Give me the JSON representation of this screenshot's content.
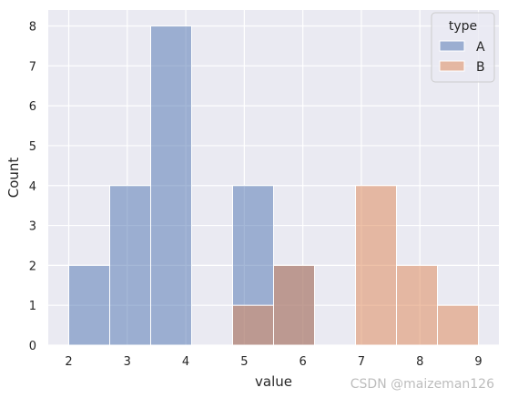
{
  "chart_data": {
    "type": "bar",
    "subtype": "histogram",
    "xlabel": "value",
    "ylabel": "Count",
    "xlim": [
      1.65,
      9.35
    ],
    "ylim": [
      0,
      8.4
    ],
    "xticks": [
      2,
      3,
      4,
      5,
      6,
      7,
      8,
      9
    ],
    "yticks": [
      0,
      1,
      2,
      3,
      4,
      5,
      6,
      7,
      8
    ],
    "grid": true,
    "legend": {
      "title": "type",
      "placement": "top-right"
    },
    "series": [
      {
        "name": "A",
        "color": "#4c72b0",
        "bins": [
          {
            "x0": 2.0,
            "x1": 2.7,
            "count": 2
          },
          {
            "x0": 2.7,
            "x1": 3.4,
            "count": 4
          },
          {
            "x0": 3.4,
            "x1": 4.1,
            "count": 8
          },
          {
            "x0": 4.8,
            "x1": 5.5,
            "count": 4
          },
          {
            "x0": 5.5,
            "x1": 6.2,
            "count": 2
          }
        ]
      },
      {
        "name": "B",
        "color": "#dd8452",
        "bins": [
          {
            "x0": 4.8,
            "x1": 5.5,
            "count": 1
          },
          {
            "x0": 5.5,
            "x1": 6.2,
            "count": 2
          },
          {
            "x0": 6.9,
            "x1": 7.6,
            "count": 4
          },
          {
            "x0": 7.6,
            "x1": 8.3,
            "count": 2
          },
          {
            "x0": 8.3,
            "x1": 9.0,
            "count": 1
          }
        ]
      }
    ]
  },
  "watermark": "CSDN @maizeman126",
  "colors": {
    "plot_bg": "#eaeaf2",
    "grid": "#ffffff",
    "bar_edge": "#ffffff"
  }
}
